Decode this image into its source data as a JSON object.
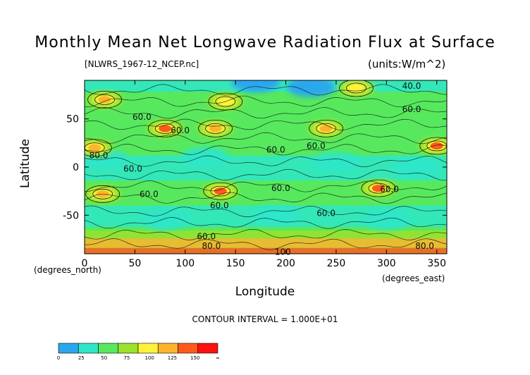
{
  "title": "Monthly Mean Net Longwave Radiation Flux at Surface",
  "file_label": "[NLWRS_1967-12_NCEP.nc]",
  "units_label": "(units:W/m^2)",
  "contour_note": "CONTOUR INTERVAL = 1.000E+01",
  "colors": {
    "levels": [
      "#29a7ee",
      "#2ee6c8",
      "#57e85e",
      "#9be22c",
      "#fff23a",
      "#ffb42c",
      "#ff5a1c",
      "#ff1010"
    ]
  },
  "chart_data": {
    "type": "heatmap",
    "title": "Monthly Mean Net Longwave Radiation Flux at Surface",
    "xlabel": "Longitude",
    "ylabel": "Latitude",
    "x_unit_label": "(degrees_east)",
    "y_unit_label": "(degrees_north)",
    "xlim": [
      0,
      360
    ],
    "ylim": [
      -90,
      90
    ],
    "x_ticks": [
      0,
      50,
      100,
      150,
      200,
      250,
      300,
      350
    ],
    "y_ticks": [
      -50,
      0,
      50
    ],
    "contour_interval": 10,
    "contour_labels": [
      {
        "text": "40.0",
        "lon": 325,
        "lat": 84
      },
      {
        "text": "60.0",
        "lon": 57,
        "lat": 52
      },
      {
        "text": "60.0",
        "lon": 325,
        "lat": 60
      },
      {
        "text": "60.0",
        "lon": 95,
        "lat": 38
      },
      {
        "text": "60.0",
        "lon": 190,
        "lat": 18
      },
      {
        "text": "60.0",
        "lon": 230,
        "lat": 22
      },
      {
        "text": "80.0",
        "lon": 14,
        "lat": 12
      },
      {
        "text": "60.0",
        "lon": 48,
        "lat": -2
      },
      {
        "text": "60.0",
        "lon": 64,
        "lat": -28
      },
      {
        "text": "60.0",
        "lon": 195,
        "lat": -22
      },
      {
        "text": "60.0",
        "lon": 303,
        "lat": -23
      },
      {
        "text": "60.0",
        "lon": 134,
        "lat": -40
      },
      {
        "text": "60.0",
        "lon": 240,
        "lat": -48
      },
      {
        "text": "60.0",
        "lon": 121,
        "lat": -72
      },
      {
        "text": "80.0",
        "lon": 126,
        "lat": -82
      },
      {
        "text": "80.0",
        "lon": 338,
        "lat": -82
      },
      {
        "text": "100",
        "lon": 197,
        "lat": -88
      }
    ],
    "colorbar": {
      "bounds": [
        "0",
        "25",
        "50",
        "75",
        "100",
        "125",
        "150",
        "∞"
      ]
    },
    "hotspots": [
      {
        "lon": 10,
        "lat": 20,
        "level": 5
      },
      {
        "lon": 20,
        "lat": 70,
        "level": 5
      },
      {
        "lon": 80,
        "lat": 40,
        "level": 6
      },
      {
        "lon": 130,
        "lat": 40,
        "level": 5
      },
      {
        "lon": 140,
        "lat": 68,
        "level": 4
      },
      {
        "lon": 240,
        "lat": 40,
        "level": 5
      },
      {
        "lon": 350,
        "lat": 22,
        "level": 6
      },
      {
        "lon": 18,
        "lat": -28,
        "level": 5
      },
      {
        "lon": 135,
        "lat": -25,
        "level": 6
      },
      {
        "lon": 292,
        "lat": -22,
        "level": 6
      },
      {
        "lon": 270,
        "lat": 82,
        "level": 4
      }
    ],
    "coolspots": [
      {
        "lon": 225,
        "lat": 83,
        "level": 0
      },
      {
        "lon": 170,
        "lat": 88,
        "level": 0
      },
      {
        "lon": 20,
        "lat": 8,
        "level": 1
      },
      {
        "lon": 120,
        "lat": 10,
        "level": 1
      },
      {
        "lon": 250,
        "lat": 5,
        "level": 1
      },
      {
        "lon": 330,
        "lat": 0,
        "level": 1
      },
      {
        "lon": 80,
        "lat": -55,
        "level": 1
      },
      {
        "lon": 190,
        "lat": -50,
        "level": 1
      },
      {
        "lon": 300,
        "lat": -55,
        "level": 1
      }
    ]
  }
}
